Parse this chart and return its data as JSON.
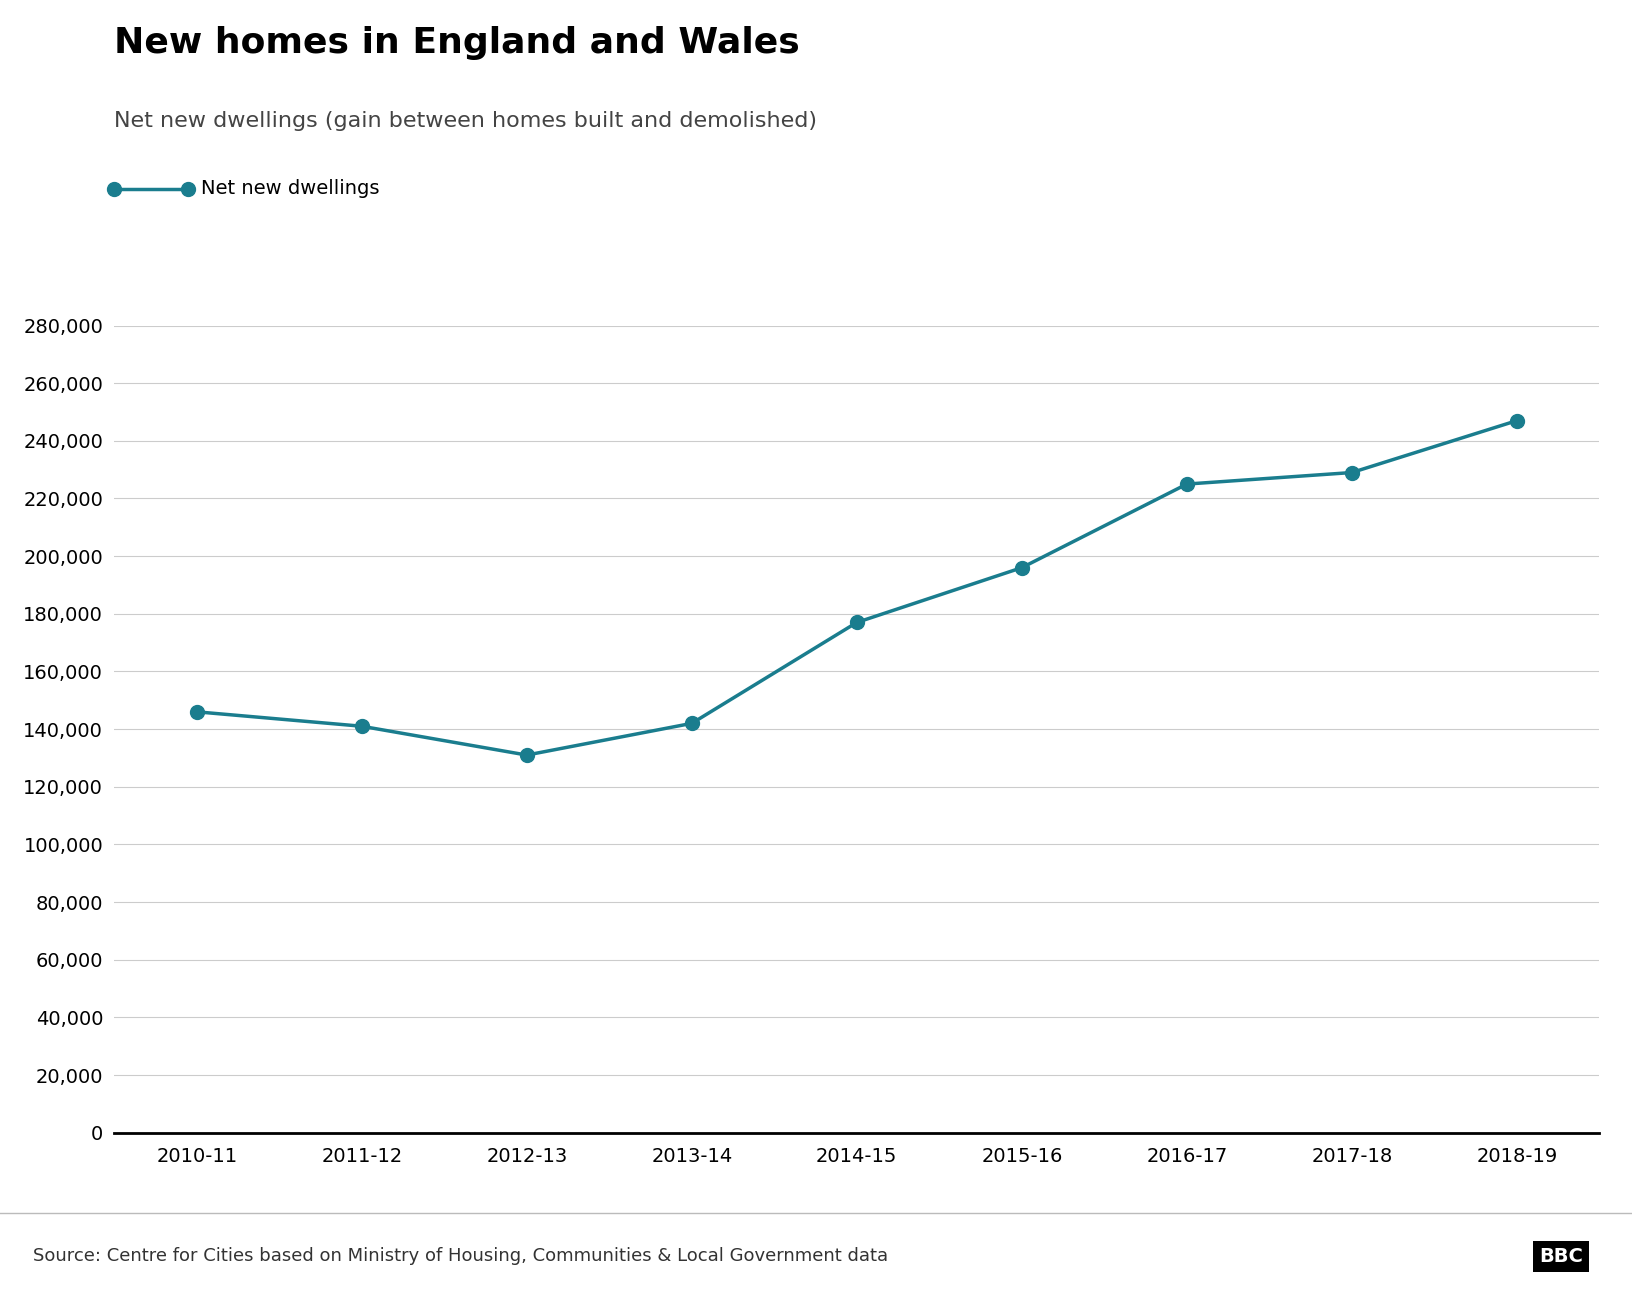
{
  "title": "New homes in England and Wales",
  "subtitle": "Net new dwellings (gain between homes built and demolished)",
  "legend_label": "Net new dwellings",
  "source": "Source: Centre for Cities based on Ministry of Housing, Communities & Local Government data",
  "bbc_logo": "BBC",
  "x_labels": [
    "2010-11",
    "2011-12",
    "2012-13",
    "2013-14",
    "2014-15",
    "2015-16",
    "2016-17",
    "2017-18",
    "2018-19"
  ],
  "y_values": [
    146000,
    141000,
    131000,
    142000,
    177000,
    196000,
    225000,
    229000,
    247000
  ],
  "line_color": "#1a7d8e",
  "marker_color": "#1a7d8e",
  "y_min": 0,
  "y_max": 280000,
  "y_tick_step": 20000,
  "title_fontsize": 26,
  "subtitle_fontsize": 16,
  "legend_fontsize": 14,
  "axis_fontsize": 14,
  "source_fontsize": 13,
  "marker_size": 10,
  "line_width": 2.5,
  "background_color": "#ffffff",
  "axis_line_color": "#000000",
  "bottom_bar_color": "#eeeeee",
  "bottom_bar_height": 0.07
}
